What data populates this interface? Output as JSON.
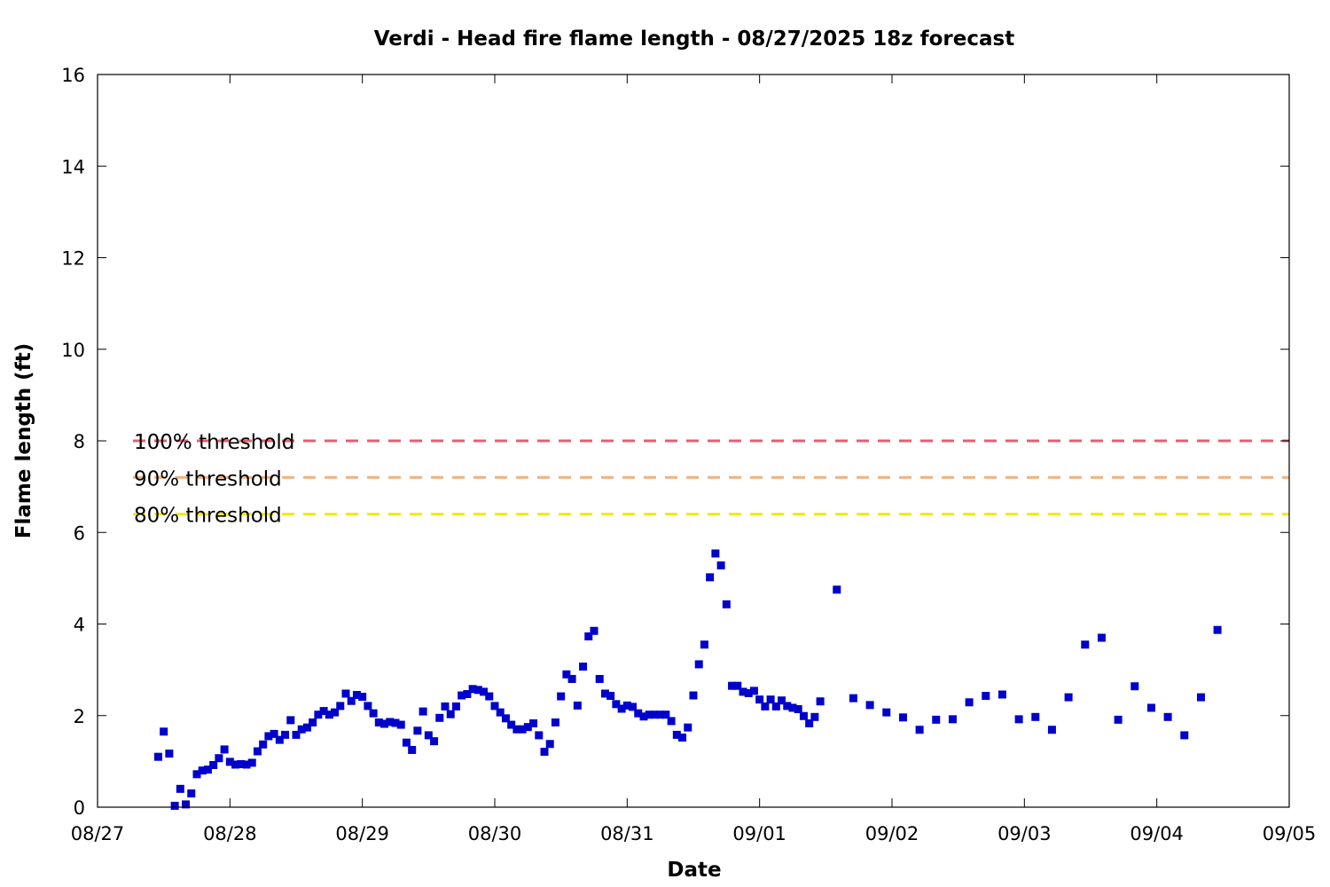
{
  "chart_data": {
    "type": "scatter",
    "title": "Verdi - Head fire flame length - 08/27/2025 18z forecast",
    "xlabel": "Date",
    "ylabel": "Flame length (ft)",
    "x_tick_labels": [
      "08/27",
      "08/28",
      "08/29",
      "08/30",
      "08/31",
      "09/01",
      "09/02",
      "09/03",
      "09/04",
      "09/05"
    ],
    "y_ticks": [
      0,
      2,
      4,
      6,
      8,
      10,
      12,
      14,
      16
    ],
    "ylim": [
      0,
      16
    ],
    "grid": false,
    "marker_color": "#0000cc",
    "thresholds": [
      {
        "label": "100% threshold",
        "value": 8.0,
        "color": "#e06070"
      },
      {
        "label": "90% threshold",
        "value": 7.2,
        "color": "#f4b07a"
      },
      {
        "label": "80% threshold",
        "value": 6.4,
        "color": "#eeee00"
      }
    ],
    "series": [
      {
        "x": [
          "08/27 11:00",
          "08/27 12:00",
          "08/27 13:00",
          "08/27 14:00",
          "08/27 15:00",
          "08/27 16:00",
          "08/27 17:00",
          "08/27 18:00",
          "08/27 19:00",
          "08/27 20:00",
          "08/27 21:00",
          "08/27 22:00",
          "08/27 23:00",
          "08/28 00:00",
          "08/28 01:00",
          "08/28 02:00",
          "08/28 03:00",
          "08/28 04:00",
          "08/28 05:00",
          "08/28 06:00",
          "08/28 07:00",
          "08/28 08:00",
          "08/28 09:00",
          "08/28 10:00",
          "08/28 11:00",
          "08/28 12:00",
          "08/28 13:00",
          "08/28 14:00",
          "08/28 15:00",
          "08/28 16:00",
          "08/28 17:00",
          "08/28 18:00",
          "08/28 19:00",
          "08/28 20:00",
          "08/28 21:00",
          "08/28 22:00",
          "08/28 23:00",
          "08/29 00:00",
          "08/29 01:00",
          "08/29 02:00",
          "08/29 03:00",
          "08/29 04:00",
          "08/29 05:00",
          "08/29 06:00",
          "08/29 07:00",
          "08/29 08:00",
          "08/29 09:00",
          "08/29 10:00",
          "08/29 11:00",
          "08/29 12:00",
          "08/29 13:00",
          "08/29 14:00",
          "08/29 15:00",
          "08/29 16:00",
          "08/29 17:00",
          "08/29 18:00",
          "08/29 19:00",
          "08/29 20:00",
          "08/29 21:00",
          "08/29 22:00",
          "08/29 23:00",
          "08/30 00:00",
          "08/30 01:00",
          "08/30 02:00",
          "08/30 03:00",
          "08/30 04:00",
          "08/30 05:00",
          "08/30 06:00",
          "08/30 07:00",
          "08/30 08:00",
          "08/30 09:00",
          "08/30 10:00",
          "08/30 11:00",
          "08/30 12:00",
          "08/30 13:00",
          "08/30 14:00",
          "08/30 15:00",
          "08/30 16:00",
          "08/30 17:00",
          "08/30 18:00",
          "08/30 19:00",
          "08/30 20:00",
          "08/30 21:00",
          "08/30 22:00",
          "08/30 23:00",
          "08/31 00:00",
          "08/31 01:00",
          "08/31 02:00",
          "08/31 03:00",
          "08/31 04:00",
          "08/31 05:00",
          "08/31 06:00",
          "08/31 07:00",
          "08/31 08:00",
          "08/31 09:00",
          "08/31 10:00",
          "08/31 11:00",
          "08/31 12:00",
          "08/31 13:00",
          "08/31 14:00",
          "08/31 15:00",
          "08/31 16:00",
          "08/31 17:00",
          "08/31 18:00",
          "08/31 19:00",
          "08/31 20:00",
          "08/31 21:00",
          "08/31 22:00",
          "08/31 23:00",
          "09/01 00:00",
          "09/01 01:00",
          "09/01 02:00",
          "09/01 03:00",
          "09/01 04:00",
          "09/01 05:00",
          "09/01 06:00",
          "09/01 07:00",
          "09/01 08:00",
          "09/01 09:00",
          "09/01 10:00",
          "09/01 11:00",
          "09/01 14:00",
          "09/01 17:00",
          "09/01 20:00",
          "09/01 23:00",
          "09/02 02:00",
          "09/02 05:00",
          "09/02 08:00",
          "09/02 11:00",
          "09/02 14:00",
          "09/02 17:00",
          "09/02 20:00",
          "09/02 23:00",
          "09/03 02:00",
          "09/03 05:00",
          "09/03 08:00",
          "09/03 11:00",
          "09/03 14:00",
          "09/03 17:00",
          "09/03 20:00",
          "09/03 23:00",
          "09/04 02:00",
          "09/04 05:00",
          "09/04 08:00",
          "09/04 11:00"
        ],
        "y": [
          1.1,
          1.65,
          1.17,
          0.03,
          0.4,
          0.06,
          0.3,
          0.72,
          0.8,
          0.82,
          0.92,
          1.07,
          1.26,
          0.99,
          0.93,
          0.94,
          0.93,
          0.97,
          1.22,
          1.37,
          1.55,
          1.6,
          1.47,
          1.58,
          1.9,
          1.58,
          1.7,
          1.74,
          1.85,
          2.02,
          2.1,
          2.02,
          2.07,
          2.21,
          2.48,
          2.32,
          2.45,
          2.41,
          2.21,
          2.05,
          1.85,
          1.82,
          1.86,
          1.84,
          1.8,
          1.41,
          1.25,
          1.67,
          2.09,
          1.57,
          1.44,
          1.95,
          2.2,
          2.03,
          2.2,
          2.44,
          2.47,
          2.58,
          2.56,
          2.52,
          2.42,
          2.21,
          2.07,
          1.94,
          1.8,
          1.7,
          1.7,
          1.75,
          1.83,
          1.57,
          1.21,
          1.38,
          1.85,
          2.42,
          2.9,
          2.8,
          2.22,
          3.07,
          3.73,
          3.85,
          2.8,
          2.48,
          2.43,
          2.25,
          2.15,
          2.22,
          2.19,
          2.05,
          1.98,
          2.02,
          2.02,
          2.02,
          2.02,
          1.88,
          1.58,
          1.52,
          1.74,
          2.44,
          3.12,
          3.55,
          5.02,
          5.54,
          5.28,
          4.43,
          2.65,
          2.65,
          2.52,
          2.49,
          2.54,
          2.35,
          2.2,
          2.35,
          2.2,
          2.33,
          2.21,
          2.17,
          2.14,
          1.99,
          1.83,
          1.97,
          2.31,
          4.75,
          2.38,
          2.23,
          2.07,
          1.96,
          1.69,
          1.91,
          1.92,
          2.29,
          2.43,
          2.46,
          1.92,
          1.97,
          1.69,
          2.4,
          3.55,
          3.7,
          1.91,
          2.64,
          2.17,
          1.97,
          1.57,
          2.4,
          3.87
        ]
      }
    ]
  }
}
